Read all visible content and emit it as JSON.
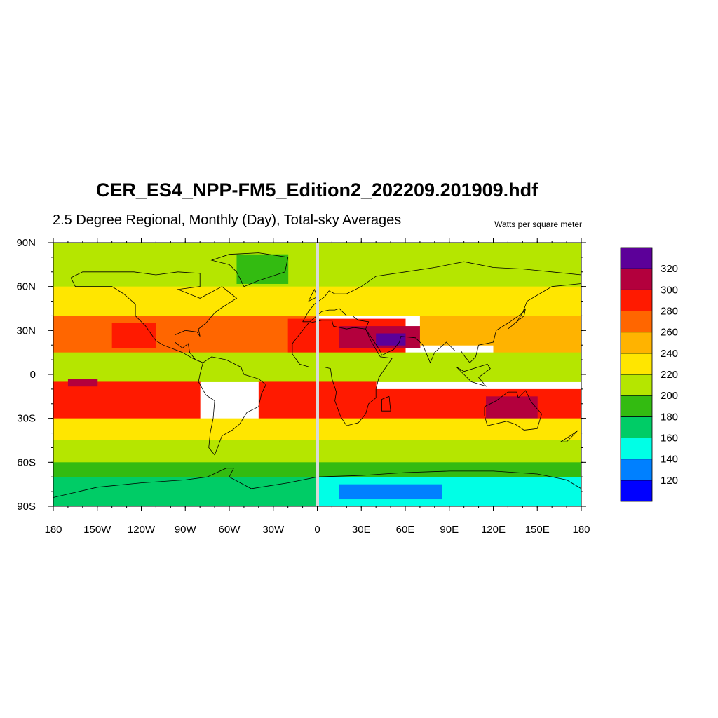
{
  "title": "CER_ES4_NPP-FM5_Edition2_202209.201909.hdf",
  "subtitle": "2.5 Degree Regional, Monthly (Day), Total-sky Averages",
  "units": "Watts per square meter",
  "map": {
    "projection": "cylindrical-equidistant",
    "lon_range": [
      -180,
      180
    ],
    "lat_range": [
      -90,
      90
    ],
    "lon_ticks": [
      {
        "value": -180,
        "label": "180"
      },
      {
        "value": -150,
        "label": "150W"
      },
      {
        "value": -120,
        "label": "120W"
      },
      {
        "value": -90,
        "label": "90W"
      },
      {
        "value": -60,
        "label": "60W"
      },
      {
        "value": -30,
        "label": "30W"
      },
      {
        "value": 0,
        "label": "0"
      },
      {
        "value": 30,
        "label": "30E"
      },
      {
        "value": 60,
        "label": "60E"
      },
      {
        "value": 90,
        "label": "90E"
      },
      {
        "value": 120,
        "label": "120E"
      },
      {
        "value": 150,
        "label": "150E"
      },
      {
        "value": 180,
        "label": "180"
      }
    ],
    "lat_ticks": [
      {
        "value": 90,
        "label": "90N"
      },
      {
        "value": 60,
        "label": "60N"
      },
      {
        "value": 30,
        "label": "30N"
      },
      {
        "value": 0,
        "label": "0"
      },
      {
        "value": -30,
        "label": "30S"
      },
      {
        "value": -60,
        "label": "60S"
      },
      {
        "value": -90,
        "label": "90S"
      }
    ],
    "data_gap_lon": 0
  },
  "colorbar": {
    "levels": [
      120,
      140,
      160,
      180,
      200,
      220,
      240,
      260,
      280,
      300,
      320
    ],
    "labels": [
      "120",
      "140",
      "160",
      "180",
      "200",
      "220",
      "240",
      "260",
      "280",
      "300",
      "320"
    ],
    "colors": [
      "#0000ff",
      "#0080ff",
      "#00ffe6",
      "#00cc66",
      "#33bb11",
      "#b5e600",
      "#ffe600",
      "#ffb300",
      "#ff6600",
      "#ff1a00",
      "#b3003d",
      "#5c0099"
    ]
  },
  "chart_data": {
    "type": "heatmap",
    "title": "CER_ES4_NPP-FM5_Edition2_202209.201909.hdf",
    "x": "longitude",
    "y": "latitude",
    "xlim": [
      -180,
      180
    ],
    "ylim": [
      -90,
      90
    ],
    "grid": false,
    "regions": [
      {
        "lon": [
          -180,
          180
        ],
        "lat": [
          60,
          90
        ],
        "value": 210
      },
      {
        "lon": [
          -55,
          -20
        ],
        "lat": [
          62,
          82
        ],
        "value": 195
      },
      {
        "lon": [
          -180,
          180
        ],
        "lat": [
          40,
          60
        ],
        "value": 230
      },
      {
        "lon": [
          -180,
          -60
        ],
        "lat": [
          10,
          40
        ],
        "value": 265
      },
      {
        "lon": [
          -140,
          -110
        ],
        "lat": [
          18,
          35
        ],
        "value": 285
      },
      {
        "lon": [
          -60,
          0
        ],
        "lat": [
          15,
          40
        ],
        "value": 260
      },
      {
        "lon": [
          -20,
          60
        ],
        "lat": [
          15,
          38
        ],
        "value": 285
      },
      {
        "lon": [
          15,
          70
        ],
        "lat": [
          18,
          33
        ],
        "value": 305
      },
      {
        "lon": [
          40,
          60
        ],
        "lat": [
          20,
          28
        ],
        "value": 322
      },
      {
        "lon": [
          70,
          120
        ],
        "lat": [
          20,
          40
        ],
        "value": 245
      },
      {
        "lon": [
          120,
          180
        ],
        "lat": [
          15,
          40
        ],
        "value": 255
      },
      {
        "lon": [
          -180,
          180
        ],
        "lat": [
          -5,
          15
        ],
        "value": 215
      },
      {
        "lon": [
          -180,
          -80
        ],
        "lat": [
          -30,
          -5
        ],
        "value": 285
      },
      {
        "lon": [
          -170,
          -150
        ],
        "lat": [
          -8,
          -3
        ],
        "value": 300
      },
      {
        "lon": [
          -40,
          10
        ],
        "lat": [
          -30,
          -5
        ],
        "value": 282
      },
      {
        "lon": [
          10,
          40
        ],
        "lat": [
          -30,
          -5
        ],
        "value": 285
      },
      {
        "lon": [
          40,
          180
        ],
        "lat": [
          -30,
          -10
        ],
        "value": 282
      },
      {
        "lon": [
          115,
          150
        ],
        "lat": [
          -30,
          -15
        ],
        "value": 305
      },
      {
        "lon": [
          -180,
          180
        ],
        "lat": [
          -45,
          -30
        ],
        "value": 235
      },
      {
        "lon": [
          -180,
          180
        ],
        "lat": [
          -60,
          -45
        ],
        "value": 205
      },
      {
        "lon": [
          -180,
          180
        ],
        "lat": [
          -70,
          -60
        ],
        "value": 190
      },
      {
        "lon": [
          -180,
          0
        ],
        "lat": [
          -90,
          -70
        ],
        "value": 162
      },
      {
        "lon": [
          0,
          180
        ],
        "lat": [
          -90,
          -70
        ],
        "value": 142
      },
      {
        "lon": [
          15,
          85
        ],
        "lat": [
          -85,
          -75
        ],
        "value": 125
      }
    ]
  }
}
